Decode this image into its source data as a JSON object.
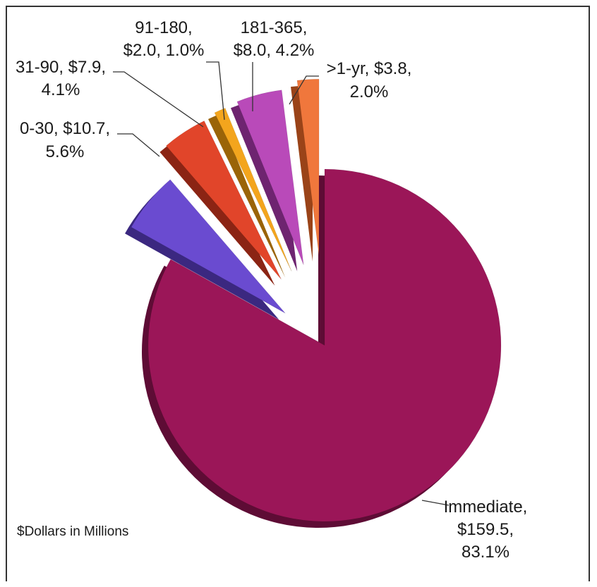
{
  "chart_data": {
    "type": "pie",
    "note": "$Dollars in Millions",
    "slices": [
      {
        "name": "Immediate",
        "value": 159.5,
        "value_label": "$159.5",
        "percent": "83.1%",
        "color": "#9b1658",
        "side": "#5e0c35",
        "exploded": false
      },
      {
        "name": "0-30",
        "value": 10.7,
        "value_label": "$10.7",
        "percent": "5.6%",
        "color": "#6a4bd0",
        "side": "#3b2880",
        "exploded": true
      },
      {
        "name": "31-90",
        "value": 7.9,
        "value_label": "$7.9",
        "percent": "4.1%",
        "color": "#e1452a",
        "side": "#8b2414",
        "exploded": true
      },
      {
        "name": "91-180",
        "value": 2.0,
        "value_label": "$2.0",
        "percent": "1.0%",
        "color": "#f3a51d",
        "side": "#9a6408",
        "exploded": true
      },
      {
        "name": "181-365",
        "value": 8.0,
        "value_label": "$8.0",
        "percent": "4.2%",
        "color": "#b94ab9",
        "side": "#6e2470",
        "exploded": true
      },
      {
        "name": ">1-yr",
        "value": 3.8,
        "value_label": "$3.8",
        "percent": "2.0%",
        "color": "#f0773c",
        "side": "#9a4318",
        "exploded": true
      }
    ]
  },
  "labels": {
    "immediate": [
      "Immediate,",
      "$159.5,",
      "83.1%"
    ],
    "d0_30": [
      "0-30, $10.7,",
      "5.6%"
    ],
    "d31_90": [
      "31-90, $7.9,",
      "4.1%"
    ],
    "d91_180": [
      "91-180,",
      "$2.0, 1.0%"
    ],
    "d181_365": [
      "181-365,",
      "$8.0, 4.2%"
    ],
    "gt1yr": [
      ">1-yr, $3.8,",
      "2.0%"
    ]
  }
}
